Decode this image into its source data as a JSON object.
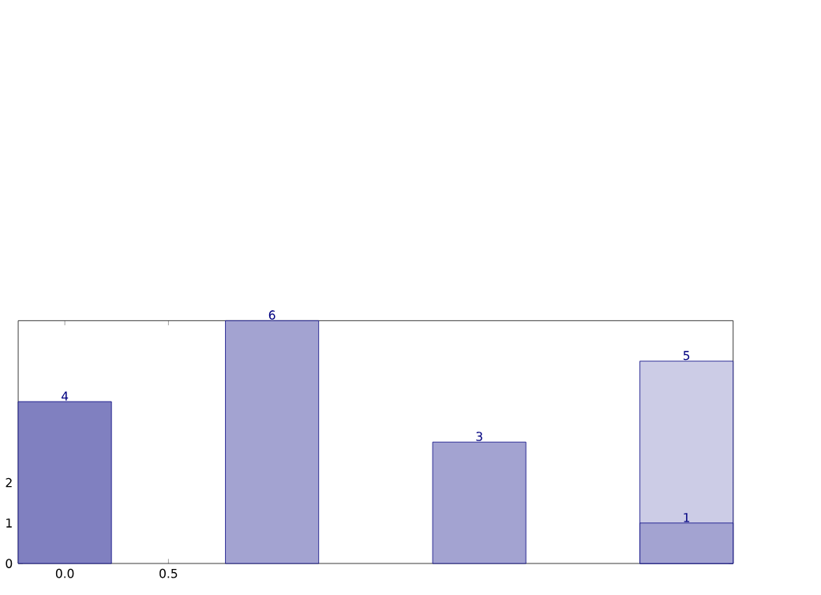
{
  "chart_data": {
    "type": "bar",
    "x": [
      0,
      1,
      2,
      3
    ],
    "series": [
      {
        "colors": [
          "#8080c0",
          "#a3a3d1",
          "#a3a3d1",
          "#cccce6"
        ],
        "values": [
          4,
          6,
          3,
          5
        ],
        "value_labels": [
          "4",
          "6",
          "3",
          "5"
        ]
      },
      {
        "colors": [
          null,
          null,
          null,
          "#a3a3d1"
        ],
        "values": [
          null,
          null,
          null,
          1
        ],
        "value_labels": [
          null,
          null,
          null,
          "1"
        ]
      }
    ],
    "xlim": [
      -0.225,
      3.225
    ],
    "ylim": [
      0,
      6
    ],
    "xticks": [
      {
        "value": 0,
        "label": "0.0"
      },
      {
        "value": 0.5,
        "label": "0.5"
      }
    ],
    "yticks": [
      {
        "value": 0,
        "label": "0"
      },
      {
        "value": 1,
        "label": "1"
      },
      {
        "value": 2,
        "label": "2"
      }
    ],
    "grid": false
  }
}
